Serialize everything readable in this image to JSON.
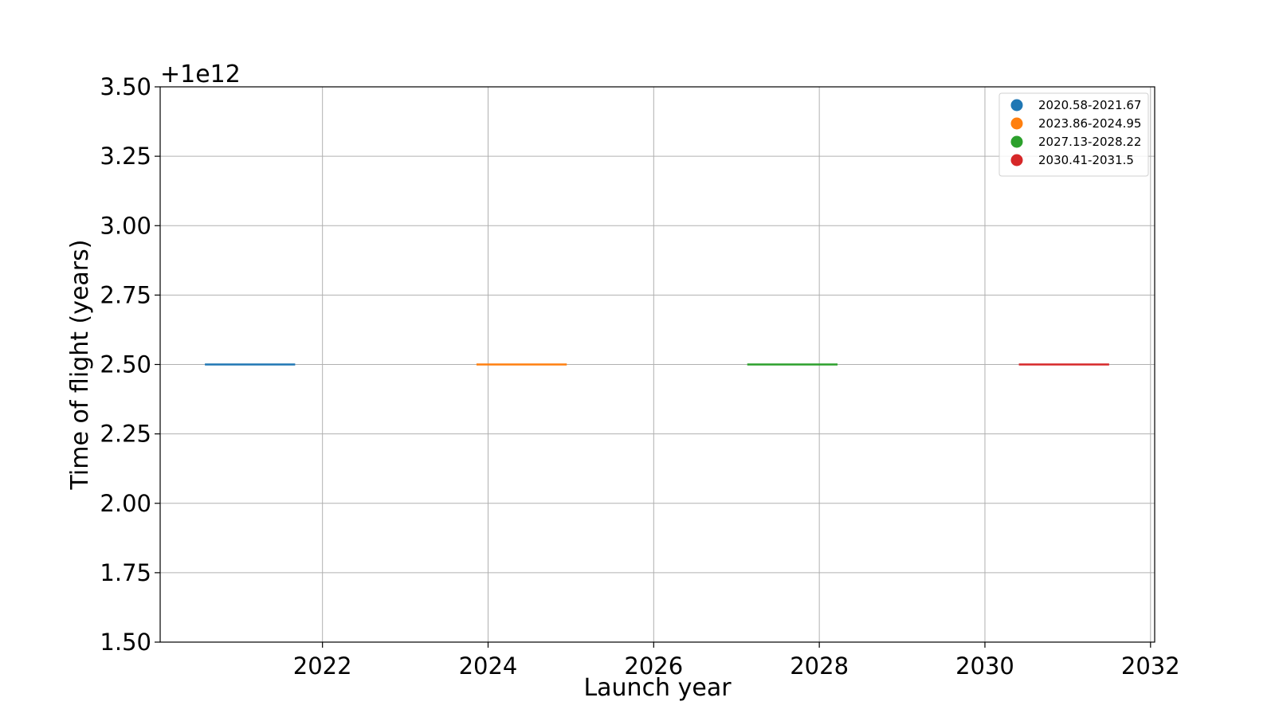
{
  "chart_data": {
    "type": "line",
    "xlabel": "Launch year",
    "ylabel": "Time of flight (years)",
    "y_offset_label": "+1e12",
    "xlim": [
      2020.04,
      2032.05
    ],
    "ylim": [
      1.5,
      3.5
    ],
    "x_ticks": [
      2022,
      2024,
      2026,
      2028,
      2030,
      2032
    ],
    "y_ticks": [
      1.5,
      1.75,
      2.0,
      2.25,
      2.5,
      2.75,
      3.0,
      3.25,
      3.5
    ],
    "y_tick_labels": [
      "1.50",
      "1.75",
      "2.00",
      "2.25",
      "2.50",
      "2.75",
      "3.00",
      "3.25",
      "3.50"
    ],
    "grid": true,
    "legend_position": "top-right",
    "series": [
      {
        "name": "2020.58-2021.67",
        "color": "#1f77b4",
        "x": [
          2020.58,
          2021.67
        ],
        "y": [
          2.5,
          2.5
        ]
      },
      {
        "name": "2023.86-2024.95",
        "color": "#ff7f0e",
        "x": [
          2023.86,
          2024.95
        ],
        "y": [
          2.5,
          2.5
        ]
      },
      {
        "name": "2027.13-2028.22",
        "color": "#2ca02c",
        "x": [
          2027.13,
          2028.22
        ],
        "y": [
          2.5,
          2.5
        ]
      },
      {
        "name": "2030.41-2031.5",
        "color": "#d62728",
        "x": [
          2030.41,
          2031.5
        ],
        "y": [
          2.5,
          2.5
        ]
      }
    ]
  }
}
